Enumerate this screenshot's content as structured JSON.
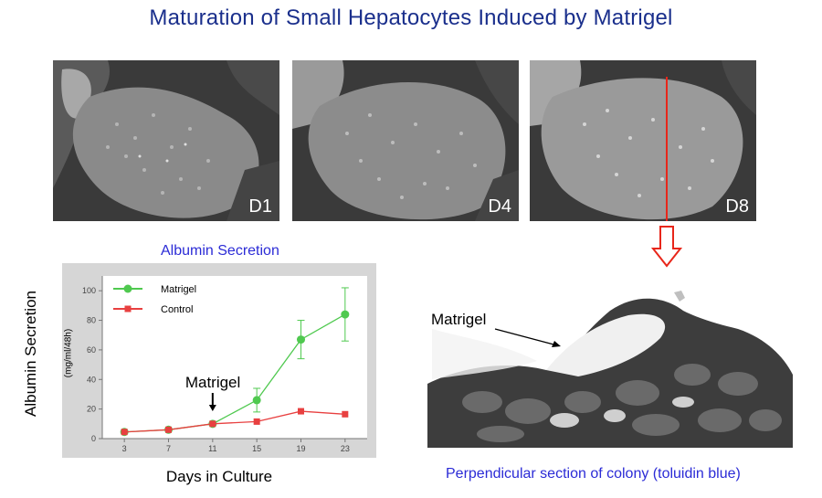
{
  "title": "Maturation of Small Hepatocytes Induced by Matrigel",
  "micrographs": [
    {
      "label": "D1"
    },
    {
      "label": "D4"
    },
    {
      "label": "D8"
    }
  ],
  "chart_caption": "Albumin Secretion",
  "section_caption": "Perpendicular section of colony (toluidin blue)",
  "section_annotation": "Matrigel",
  "colors": {
    "title": "#1a2f8c",
    "caption": "#2b2bd6",
    "matrigel_series": "#4fc94f",
    "control_series": "#e84040",
    "cut_line": "#e8261a"
  },
  "chart_data": {
    "type": "line",
    "title": "",
    "xlabel": "Days in Culture",
    "ylabel": "Albumin Secretion",
    "ylabel_unit": "(mg/ml/48h)",
    "x": [
      3,
      7,
      11,
      15,
      19,
      23
    ],
    "xlim": [
      1,
      25
    ],
    "ylim": [
      0,
      110
    ],
    "yticks": [
      0,
      20,
      40,
      60,
      80,
      100
    ],
    "legend_position": "top-left",
    "annotation": {
      "text": "Matrigel",
      "x": 11
    },
    "series": [
      {
        "name": "Matrigel",
        "color": "#4fc94f",
        "marker": "circle",
        "values": [
          4.5,
          6,
          10,
          26,
          67,
          84
        ],
        "errors": [
          0,
          0,
          0,
          8,
          13,
          18
        ]
      },
      {
        "name": "Control",
        "color": "#e84040",
        "marker": "square",
        "values": [
          4.5,
          6,
          10,
          11.5,
          18.5,
          16.5
        ],
        "errors": [
          0,
          0,
          0,
          0,
          0,
          0
        ]
      }
    ]
  }
}
